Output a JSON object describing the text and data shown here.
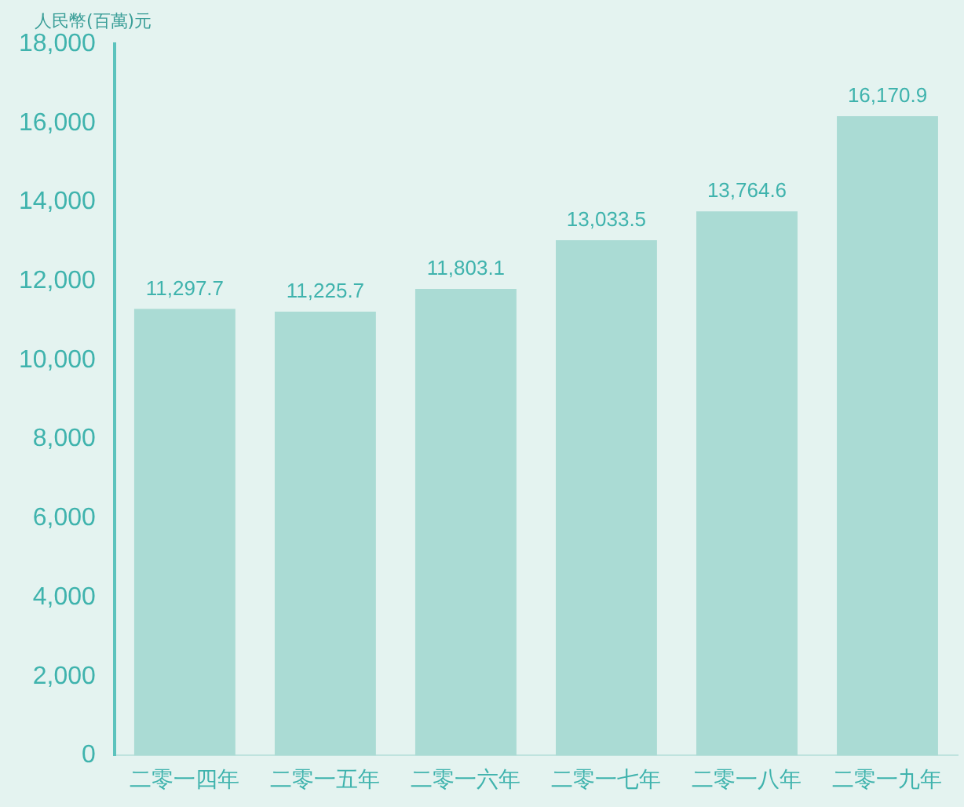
{
  "chart_data": {
    "type": "bar",
    "ylabel": "人民幣(百萬)元",
    "categories": [
      "二零一四年",
      "二零一五年",
      "二零一六年",
      "二零一七年",
      "二零一八年",
      "二零一九年"
    ],
    "values": [
      11297.7,
      11225.7,
      11803.1,
      13033.5,
      13764.6,
      16170.9
    ],
    "value_labels": [
      "11,297.7",
      "11,225.7",
      "11,803.1",
      "13,033.5",
      "13,764.6",
      "16,170.9"
    ],
    "color": "#aadbd4",
    "ylim": [
      0,
      18000
    ],
    "yticks": [
      0,
      {
        "value": 2000,
        "label": "2,000"
      },
      {
        "value": 4000,
        "label": "4,000"
      },
      {
        "value": 6000,
        "label": "6,000"
      },
      {
        "value": 8000,
        "label": "8,000"
      },
      {
        "value": 10000,
        "label": "10,000"
      },
      {
        "value": 12000,
        "label": "12,000"
      },
      {
        "value": 14000,
        "label": "14,000"
      },
      {
        "value": 16000,
        "label": "16,000"
      },
      {
        "value": 18000,
        "label": "18,000"
      }
    ],
    "grid": false,
    "legend": false
  }
}
